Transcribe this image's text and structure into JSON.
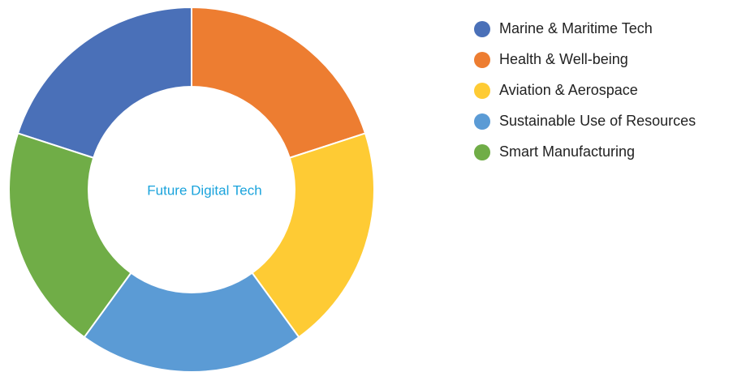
{
  "chart_data": {
    "type": "pie",
    "center_label": "Future Digital Tech",
    "categories": [
      "Marine & Maritime Tech",
      "Health & Well-being",
      "Aviation & Aerospace",
      "Sustainable Use of Resources",
      "Smart Manufacturing"
    ],
    "values": [
      20,
      20,
      20,
      20,
      20
    ],
    "colors": [
      "#4a70b8",
      "#ed7d31",
      "#fecb34",
      "#5b9bd5",
      "#70ad47"
    ],
    "legend": "right"
  }
}
